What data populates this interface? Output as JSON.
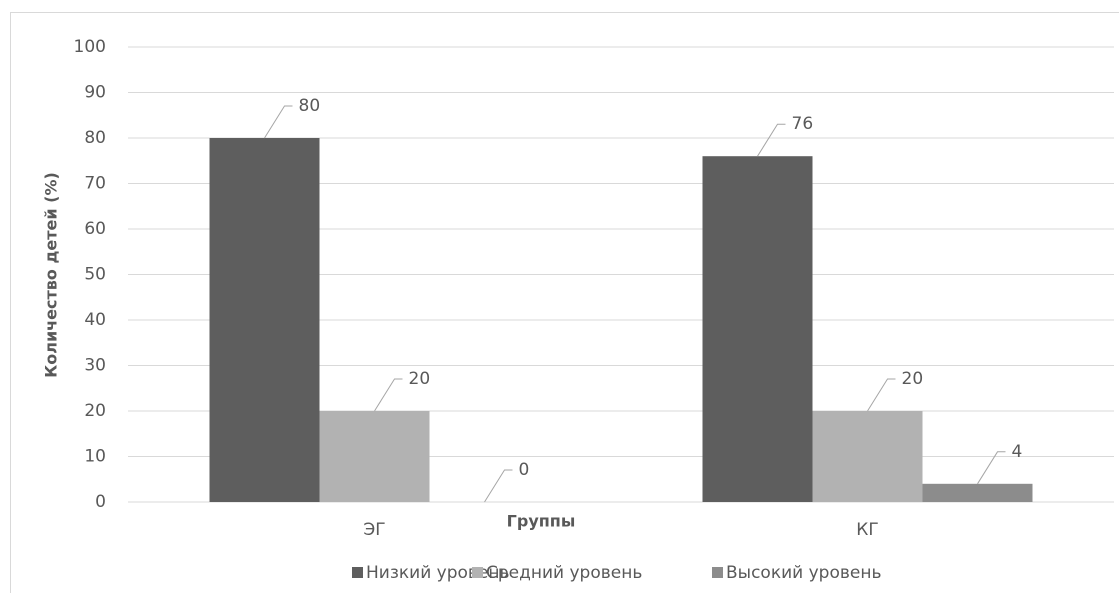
{
  "chart_data": {
    "type": "bar",
    "categories": [
      "ЭГ",
      "КГ"
    ],
    "series": [
      {
        "name": "Низкий уровень",
        "color": "#5e5e5e",
        "values": [
          80,
          76
        ]
      },
      {
        "name": "Средний уровень",
        "color": "#b2b2b2",
        "values": [
          20,
          20
        ]
      },
      {
        "name": "Высокий уровень",
        "color": "#8c8c8c",
        "values": [
          0,
          4
        ]
      }
    ],
    "ylabel": "Количество детей (%)",
    "xlabel": "Группы",
    "ylim": [
      0,
      100
    ],
    "yticks": [
      0,
      10,
      20,
      30,
      40,
      50,
      60,
      70,
      80,
      90,
      100
    ],
    "grid": true,
    "legend": "bottom"
  }
}
